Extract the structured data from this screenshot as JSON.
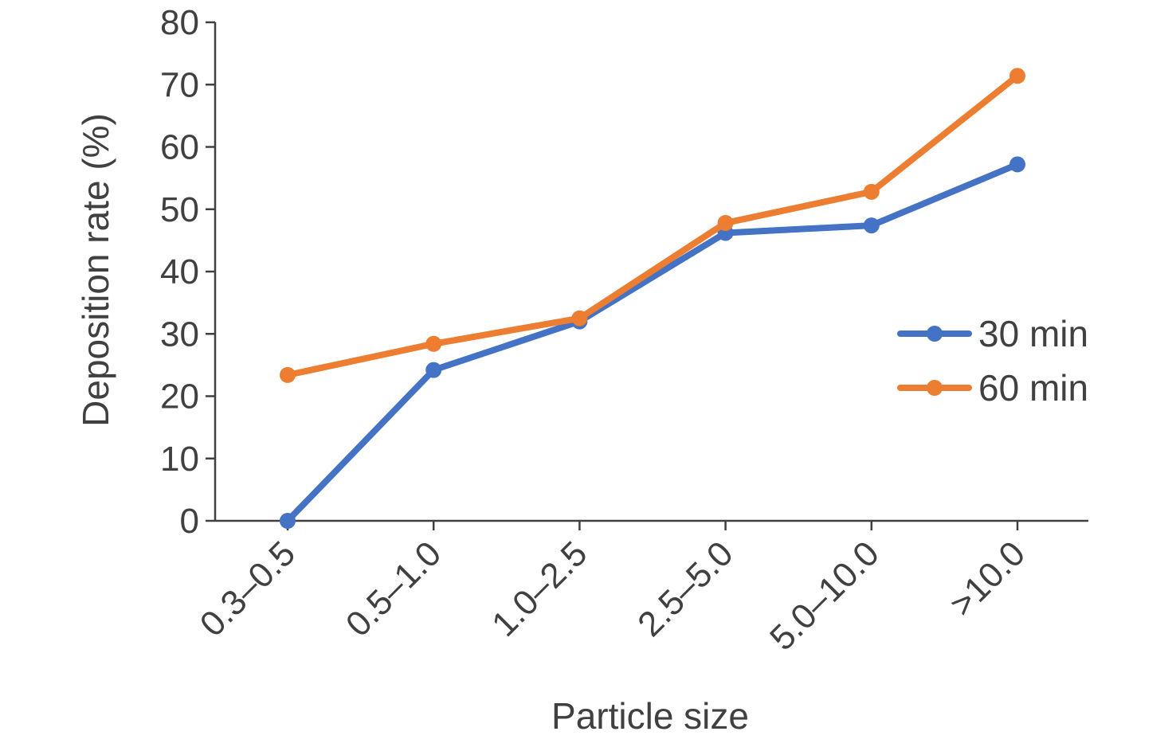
{
  "chart_data": {
    "type": "line",
    "title": "",
    "xlabel": "Particle size",
    "ylabel": "Deposition rate (%)",
    "categories": [
      "0.3–0.5",
      "0.5–1.0",
      "1.0–2.5",
      "2.5–5.0",
      "5.0–10.0",
      ">10.0"
    ],
    "ylim": [
      0,
      80
    ],
    "yticks": [
      "0",
      "10",
      "20",
      "30",
      "40",
      "50",
      "60",
      "70",
      "80"
    ],
    "grid": false,
    "legend_position": "right",
    "series": [
      {
        "name": "30 min",
        "color": "#4472C4",
        "values": [
          0,
          24.2,
          32.0,
          46.2,
          47.4,
          57.2
        ]
      },
      {
        "name": "60 min",
        "color": "#ED7D31",
        "values": [
          23.4,
          28.4,
          32.5,
          47.8,
          52.8,
          71.4
        ]
      }
    ]
  }
}
